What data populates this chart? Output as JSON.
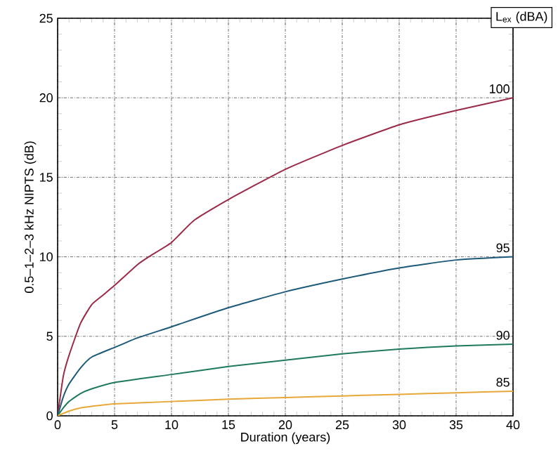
{
  "chart_data": {
    "type": "line",
    "xlabel": "Duration (years)",
    "ylabel": "0.5–1–2–3 kHz NIPTS (dB)",
    "legend_title": "L$_{ex}$ (dBA)",
    "xlim": [
      0,
      40
    ],
    "ylim": [
      0,
      25
    ],
    "xticks": [
      0,
      5,
      10,
      15,
      20,
      25,
      30,
      35,
      40
    ],
    "yticks": [
      0,
      5,
      10,
      15,
      20,
      25
    ],
    "grid": true,
    "marker": "none",
    "line_style": "solid",
    "series": [
      {
        "name": "100",
        "color": "#9b2a48",
        "x": [
          0,
          0.5,
          1,
          2,
          3,
          4,
          5,
          7,
          8,
          10,
          12,
          15,
          20,
          25,
          30,
          35,
          40
        ],
        "values": [
          0,
          2.5,
          3.8,
          5.8,
          7,
          7.6,
          8.2,
          9.5,
          10,
          10.9,
          12.3,
          13.6,
          15.5,
          17,
          18.3,
          19.2,
          20
        ]
      },
      {
        "name": "95",
        "color": "#1d5a7a",
        "x": [
          0,
          0.5,
          1,
          2,
          3,
          5,
          7,
          10,
          15,
          20,
          25,
          30,
          35,
          40
        ],
        "values": [
          0,
          1.2,
          2,
          3,
          3.7,
          4.3,
          4.9,
          5.6,
          6.8,
          7.8,
          8.6,
          9.3,
          9.8,
          10
        ]
      },
      {
        "name": "90",
        "color": "#1f7a5a",
        "x": [
          0,
          0.5,
          1,
          2,
          3,
          5,
          10,
          15,
          20,
          25,
          30,
          35,
          40
        ],
        "values": [
          0,
          0.5,
          0.9,
          1.4,
          1.7,
          2.1,
          2.6,
          3.1,
          3.5,
          3.9,
          4.2,
          4.4,
          4.5
        ]
      },
      {
        "name": "85",
        "color": "#e8a838",
        "x": [
          0,
          1,
          2,
          3,
          5,
          10,
          15,
          20,
          25,
          30,
          35,
          40
        ],
        "values": [
          0,
          0.3,
          0.5,
          0.6,
          0.75,
          0.9,
          1.05,
          1.15,
          1.25,
          1.35,
          1.45,
          1.55
        ]
      }
    ]
  }
}
